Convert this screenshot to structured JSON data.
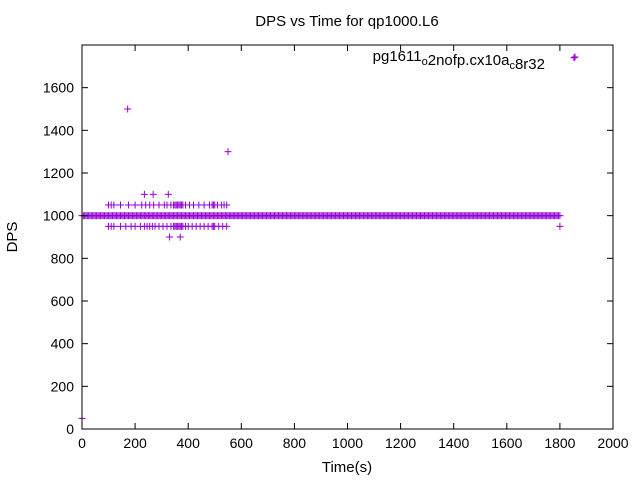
{
  "chart_data": {
    "type": "scatter",
    "title": "DPS vs Time for qp1000.L6",
    "xlabel": "Time(s)",
    "ylabel": "DPS",
    "xlim": [
      0,
      2000
    ],
    "ylim": [
      0,
      1800
    ],
    "xticks": [
      0,
      200,
      400,
      600,
      800,
      1000,
      1200,
      1400,
      1600,
      1800,
      2000
    ],
    "yticks": [
      0,
      200,
      400,
      600,
      800,
      1000,
      1200,
      1400,
      1600
    ],
    "grid": false,
    "legend_position": "top-right",
    "marker": "+",
    "series": [
      {
        "name": "pg1611o2nofp.cx10ac8r32",
        "legend_parts": [
          {
            "text": "pg1611",
            "sub": false
          },
          {
            "text": "o",
            "sub": true
          },
          {
            "text": "2nofp.cx10a",
            "sub": false
          },
          {
            "text": "c",
            "sub": true
          },
          {
            "text": "8r32",
            "sub": false
          }
        ],
        "color": "#9400d3",
        "baseline": {
          "y": 1000,
          "x_start": 0,
          "x_end": 1800,
          "step": 5
        },
        "points": [
          [
            0,
            50
          ],
          [
            172,
            1500
          ],
          [
            550,
            1300
          ],
          [
            1853,
            1740
          ],
          [
            1800,
            950
          ],
          [
            235,
            1100
          ],
          [
            268,
            1100
          ],
          [
            325,
            1100
          ],
          [
            330,
            900
          ],
          [
            370,
            900
          ],
          [
            100,
            1050
          ],
          [
            110,
            1050
          ],
          [
            120,
            1050
          ],
          [
            145,
            1050
          ],
          [
            175,
            1050
          ],
          [
            200,
            1050
          ],
          [
            225,
            1050
          ],
          [
            240,
            1050
          ],
          [
            255,
            1050
          ],
          [
            270,
            1050
          ],
          [
            290,
            1050
          ],
          [
            310,
            1050
          ],
          [
            320,
            1050
          ],
          [
            335,
            1050
          ],
          [
            345,
            1050
          ],
          [
            350,
            1050
          ],
          [
            355,
            1050
          ],
          [
            360,
            1050
          ],
          [
            365,
            1050
          ],
          [
            370,
            1050
          ],
          [
            375,
            1050
          ],
          [
            380,
            1050
          ],
          [
            390,
            1050
          ],
          [
            405,
            1050
          ],
          [
            420,
            1050
          ],
          [
            440,
            1050
          ],
          [
            460,
            1050
          ],
          [
            480,
            1050
          ],
          [
            490,
            1050
          ],
          [
            495,
            1050
          ],
          [
            500,
            1050
          ],
          [
            510,
            1050
          ],
          [
            525,
            1050
          ],
          [
            535,
            1050
          ],
          [
            545,
            1050
          ],
          [
            100,
            950
          ],
          [
            110,
            950
          ],
          [
            120,
            950
          ],
          [
            145,
            950
          ],
          [
            165,
            950
          ],
          [
            185,
            950
          ],
          [
            200,
            950
          ],
          [
            220,
            950
          ],
          [
            235,
            950
          ],
          [
            245,
            950
          ],
          [
            255,
            950
          ],
          [
            265,
            950
          ],
          [
            275,
            950
          ],
          [
            290,
            950
          ],
          [
            305,
            950
          ],
          [
            320,
            950
          ],
          [
            335,
            950
          ],
          [
            345,
            950
          ],
          [
            350,
            950
          ],
          [
            355,
            950
          ],
          [
            360,
            950
          ],
          [
            365,
            950
          ],
          [
            370,
            950
          ],
          [
            375,
            950
          ],
          [
            380,
            950
          ],
          [
            390,
            950
          ],
          [
            400,
            950
          ],
          [
            415,
            950
          ],
          [
            430,
            950
          ],
          [
            445,
            950
          ],
          [
            460,
            950
          ],
          [
            475,
            950
          ],
          [
            490,
            950
          ],
          [
            495,
            950
          ],
          [
            500,
            950
          ],
          [
            515,
            950
          ],
          [
            530,
            950
          ],
          [
            545,
            950
          ]
        ]
      }
    ]
  }
}
